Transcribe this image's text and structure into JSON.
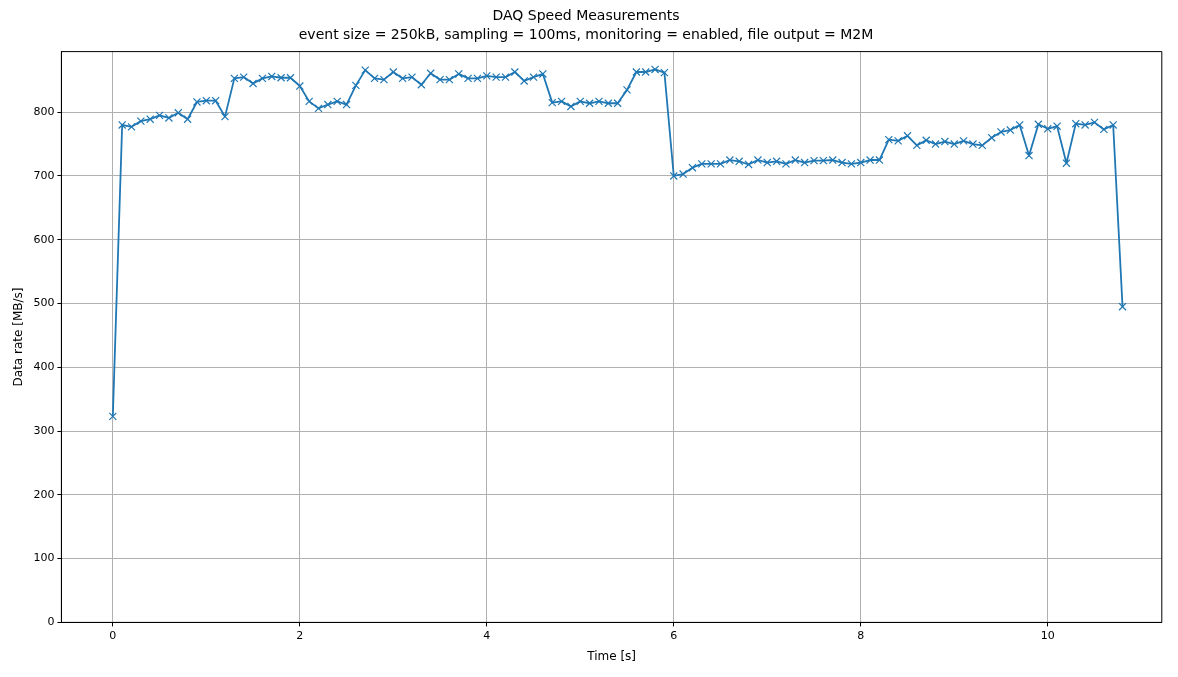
{
  "chart_data": {
    "type": "line",
    "title": "DAQ Speed Measurements",
    "subtitle": "event size = 250kB, sampling = 100ms, monitoring = enabled, file output = M2M",
    "xlabel": "Time [s]",
    "ylabel": "Data rate [MB/s]",
    "x": [
      0,
      0.1,
      0.2,
      0.3,
      0.4,
      0.5,
      0.6,
      0.7,
      0.8,
      0.9,
      1.0,
      1.1,
      1.2,
      1.3,
      1.4,
      1.5,
      1.6,
      1.7,
      1.8,
      1.9,
      2.0,
      2.1,
      2.2,
      2.3,
      2.4,
      2.5,
      2.6,
      2.7,
      2.8,
      2.9,
      3.0,
      3.1,
      3.2,
      3.3,
      3.4,
      3.5,
      3.6,
      3.7,
      3.8,
      3.9,
      4.0,
      4.1,
      4.2,
      4.3,
      4.4,
      4.5,
      4.6,
      4.7,
      4.8,
      4.9,
      5.0,
      5.1,
      5.2,
      5.3,
      5.4,
      5.5,
      5.6,
      5.7,
      5.8,
      5.9,
      6.0,
      6.1,
      6.2,
      6.3,
      6.4,
      6.5,
      6.6,
      6.7,
      6.8,
      6.9,
      7.0,
      7.1,
      7.2,
      7.3,
      7.4,
      7.5,
      7.6,
      7.7,
      7.8,
      7.9,
      8.0,
      8.1,
      8.2,
      8.3,
      8.4,
      8.5,
      8.6,
      8.7,
      8.8,
      8.9,
      9.0,
      9.1,
      9.2,
      9.3,
      9.4,
      9.5,
      9.6,
      9.7,
      9.8,
      9.9,
      10.0,
      10.1,
      10.2,
      10.3,
      10.4,
      10.5,
      10.6,
      10.7,
      10.8
    ],
    "series": [
      {
        "color": "#1f77b4",
        "values": [
          323,
          780,
          777,
          786,
          789,
          795,
          791,
          799,
          789,
          816,
          818,
          818,
          793,
          853,
          855,
          845,
          853,
          856,
          854,
          854,
          841,
          817,
          806,
          812,
          817,
          812,
          842,
          866,
          853,
          851,
          863,
          853,
          855,
          843,
          861,
          851,
          851,
          860,
          853,
          853,
          857,
          855,
          855,
          863,
          849,
          855,
          860,
          815,
          817,
          809,
          817,
          814,
          817,
          814,
          814,
          835,
          863,
          863,
          867,
          862,
          700,
          703,
          713,
          719,
          719,
          719,
          725,
          723,
          718,
          725,
          721,
          723,
          719,
          725,
          721,
          724,
          724,
          725,
          721,
          719,
          721,
          725,
          725,
          757,
          755,
          763,
          748,
          756,
          750,
          754,
          750,
          755,
          750,
          748,
          760,
          769,
          772,
          780,
          732,
          781,
          774,
          778,
          720,
          782,
          780,
          784,
          773,
          780,
          495
        ]
      }
    ],
    "xlim": [
      -0.55,
      11.22
    ],
    "xticks": [
      0,
      2,
      4,
      6,
      8,
      10
    ],
    "ylim": [
      0,
      895
    ],
    "yticks": [
      0,
      100,
      200,
      300,
      400,
      500,
      600,
      700,
      800
    ],
    "grid": true,
    "marker": "cross",
    "line_style": "solid"
  }
}
